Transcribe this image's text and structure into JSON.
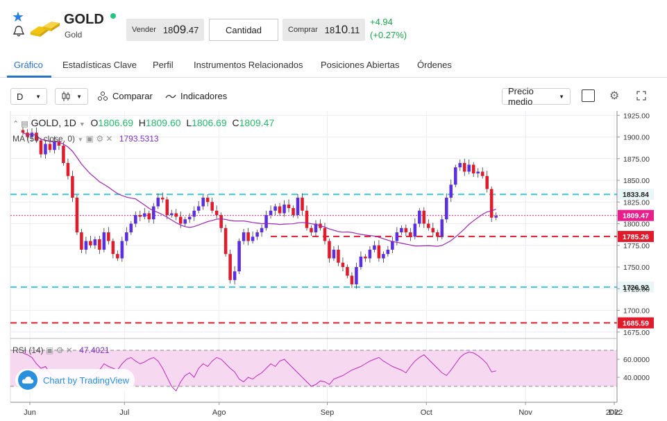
{
  "header": {
    "symbol": "GOLD",
    "name": "Gold",
    "sell_label": "Vender",
    "sell_price_small": "18",
    "sell_price_big": "09",
    "sell_price_tail": ".47",
    "qty_label": "Cantidad",
    "buy_label": "Comprar",
    "buy_price_small": "18",
    "buy_price_big": "10",
    "buy_price_tail": ".11",
    "change_abs": "+4.94",
    "change_pct": "(+0.27%)"
  },
  "tabs": [
    "Gráfico",
    "Estadísticas Clave",
    "Perfil",
    "Instrumentos Relacionados",
    "Posiciones Abiertas",
    "Órdenes"
  ],
  "toolbar": {
    "interval": "D",
    "compare_label": "Comparar",
    "indicators_label": "Indicadores",
    "price_type": "Precio medio"
  },
  "legend": {
    "symbol": "GOLD, 1D",
    "o_label": "O",
    "o_val": "1806.69",
    "h_label": "H",
    "h_val": "1809.60",
    "l_label": "L",
    "l_val": "1806.69",
    "c_label": "C",
    "c_val": "1809.47",
    "ma_label": "MA (50, close, 0)",
    "ma_val": "1793.5313",
    "rsi_label": "RSI (14)",
    "rsi_val": "47.4021"
  },
  "badge": "Chart by TradingView",
  "colors": {
    "up": "#5b2ee0",
    "down": "#e01b2c",
    "ma": "#9c27b0",
    "rsi": "#c02ab8",
    "cyan": "#3fc6d6",
    "red": "#e01b2c",
    "accent": "#2673c6"
  },
  "chart_data": {
    "type": "candlestick",
    "y_ticks": [
      "1925.00",
      "1900.00",
      "1875.00",
      "1850.00",
      "1825.00",
      "1800.00",
      "1775.00",
      "1750.00",
      "1725.00",
      "1700.00",
      "1675.00"
    ],
    "ylim": [
      1670,
      1930
    ],
    "x_labels": [
      "Jun",
      "Jul",
      "Ago",
      "Sep",
      "Oct",
      "Nov",
      "Dic",
      "2022"
    ],
    "levels": [
      {
        "value": 1833.84,
        "label": "1833.84",
        "color": "#3fc6d6",
        "dash": true
      },
      {
        "value": 1809.47,
        "label": "1809.47",
        "color": "#e91e8c",
        "dash": false
      },
      {
        "value": 1785.26,
        "label": "1785.26",
        "color": "#e01b2c",
        "dash": true
      },
      {
        "value": 1726.92,
        "label": "1726.92",
        "color": "#3fc6d6",
        "dash": true
      },
      {
        "value": 1685.59,
        "label": "1685.59",
        "color": "#e01b2c",
        "dash": true
      }
    ],
    "rsi_ticks": [
      "60.0000",
      "40.0000"
    ],
    "rsi_range": [
      20,
      80
    ],
    "closes": [
      1905,
      1900,
      1905,
      1896,
      1880,
      1892,
      1885,
      1895,
      1890,
      1870,
      1855,
      1830,
      1790,
      1770,
      1780,
      1775,
      1782,
      1770,
      1790,
      1780,
      1765,
      1760,
      1780,
      1790,
      1800,
      1810,
      1808,
      1812,
      1805,
      1820,
      1830,
      1828,
      1810,
      1812,
      1808,
      1800,
      1805,
      1808,
      1815,
      1820,
      1830,
      1825,
      1815,
      1810,
      1795,
      1765,
      1735,
      1745,
      1780,
      1790,
      1780,
      1785,
      1790,
      1795,
      1810,
      1815,
      1820,
      1812,
      1822,
      1818,
      1810,
      1830,
      1815,
      1795,
      1790,
      1800,
      1795,
      1780,
      1760,
      1770,
      1755,
      1750,
      1740,
      1730,
      1750,
      1762,
      1760,
      1770,
      1775,
      1760,
      1765,
      1770,
      1780,
      1790,
      1795,
      1790,
      1785,
      1800,
      1815,
      1800,
      1795,
      1790,
      1785,
      1805,
      1830,
      1845,
      1865,
      1870,
      1860,
      1868,
      1858,
      1860,
      1855,
      1840,
      1807,
      1809
    ],
    "rsi": [
      67,
      65,
      62,
      55,
      50,
      52,
      45,
      40,
      35,
      30,
      28,
      33,
      35,
      38,
      34,
      40,
      44,
      48,
      55,
      52,
      50,
      48,
      55,
      60,
      62,
      58,
      55,
      57,
      60,
      62,
      58,
      50,
      40,
      30,
      25,
      35,
      42,
      45,
      40,
      50,
      55,
      52,
      58,
      62,
      60,
      55,
      50,
      46,
      38,
      35,
      40,
      38,
      42,
      45,
      50,
      55,
      52,
      58,
      60,
      55,
      50,
      45,
      40,
      35,
      30,
      32,
      36,
      35,
      32,
      38,
      40,
      42,
      45,
      48,
      50,
      52,
      55,
      58,
      60,
      62,
      58,
      55,
      52,
      50,
      48,
      45,
      52,
      58,
      62,
      65,
      60,
      55,
      50,
      45,
      42,
      48,
      55,
      62,
      66,
      68,
      67,
      64,
      60,
      55,
      46,
      47
    ]
  }
}
